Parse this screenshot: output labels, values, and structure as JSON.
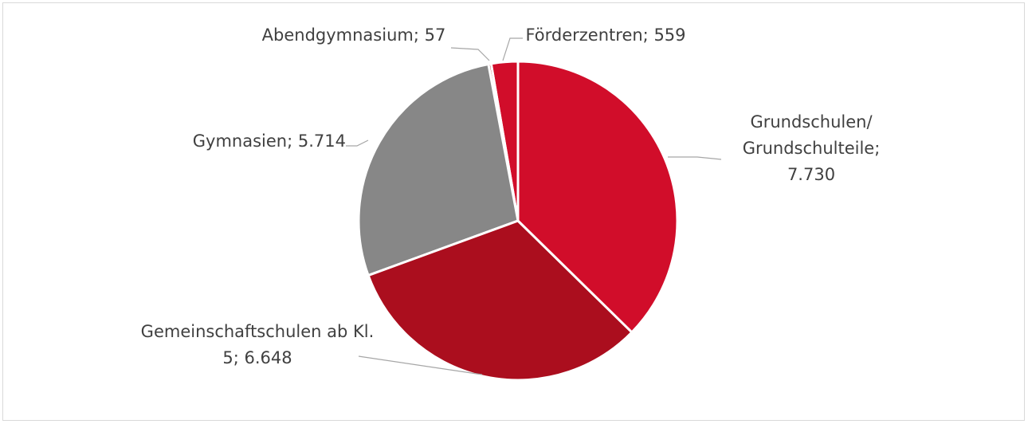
{
  "chart_data": {
    "type": "pie",
    "categories": [
      "Grundschulen/ Grundschulteile;",
      "Gemeinschaftschulen ab Kl. 5;",
      "Gymnasien;",
      "Abendgymnasium;",
      "Förderzentren;"
    ],
    "values": [
      7730,
      6648,
      5714,
      57,
      559
    ],
    "value_labels": [
      "7.730",
      "6.648",
      "5.714",
      "57",
      "559"
    ],
    "colors": [
      "#d10d2a",
      "#ab0e1e",
      "#878787",
      "#ab0e1e",
      "#d10d2a"
    ]
  }
}
